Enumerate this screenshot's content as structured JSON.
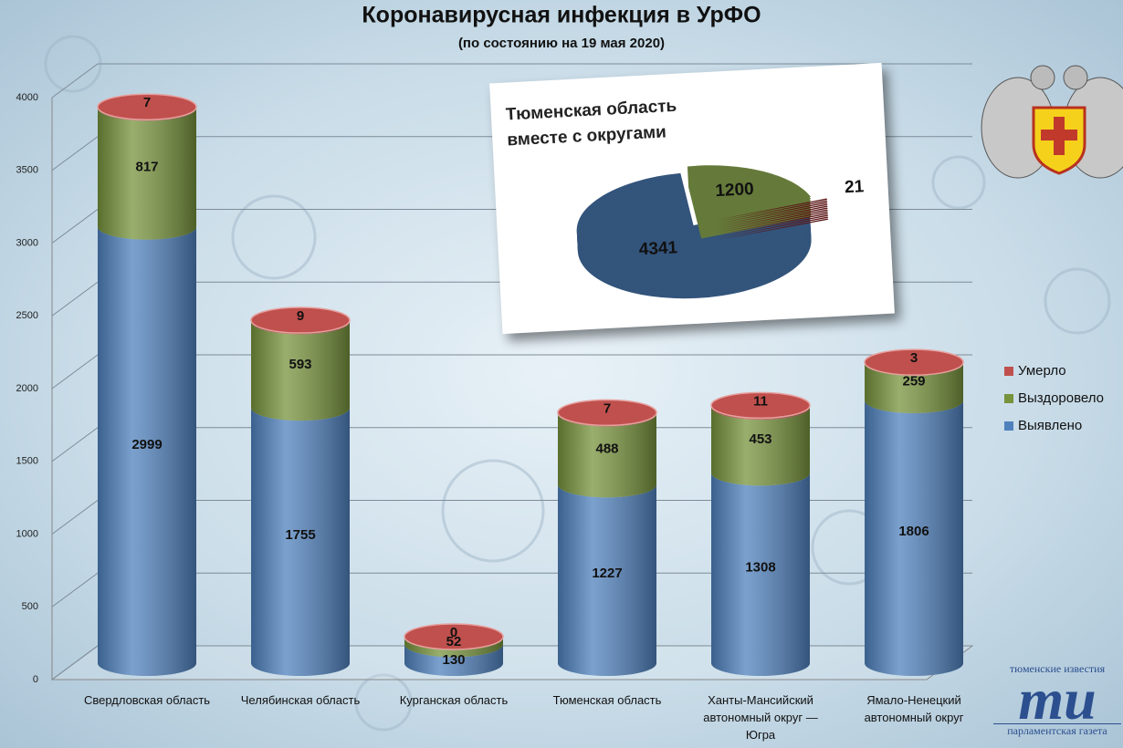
{
  "chart_data": [
    {
      "type": "bar",
      "stacked": true,
      "title": "Коронавирусная инфекция в УрФО",
      "subtitle": "(по состоянию на 19 мая 2020)",
      "categories": [
        "Свердловская область",
        "Челябинская область",
        "Курганская область",
        "Тюменская область",
        "Ханты-Мансийский автономный округ — Югра",
        "Ямало-Ненецкий автономный округ"
      ],
      "series": [
        {
          "name": "Выявлено",
          "color": "#4f81bd",
          "values": [
            2999,
            1755,
            130,
            1227,
            1308,
            1806
          ]
        },
        {
          "name": "Выздоровело",
          "color": "#77933c",
          "values": [
            817,
            593,
            52,
            488,
            453,
            259
          ]
        },
        {
          "name": "Умерло",
          "color": "#c0504d",
          "values": [
            7,
            9,
            0,
            7,
            11,
            3
          ]
        }
      ],
      "ylim": [
        0,
        4000
      ],
      "yticks": [
        0,
        500,
        1000,
        1500,
        2000,
        2500,
        3000,
        3500,
        4000
      ],
      "grid": true,
      "legend": "right"
    },
    {
      "type": "pie",
      "title": "Тюменская область вместе с округами",
      "values": [
        4341,
        1200,
        21
      ],
      "colors": [
        "#4f81bd",
        "#9bbb59",
        "#8b1f1f"
      ]
    }
  ],
  "branding": {
    "top": "тюменские известия",
    "mark": "ти",
    "bottom": "парламентская газета"
  }
}
